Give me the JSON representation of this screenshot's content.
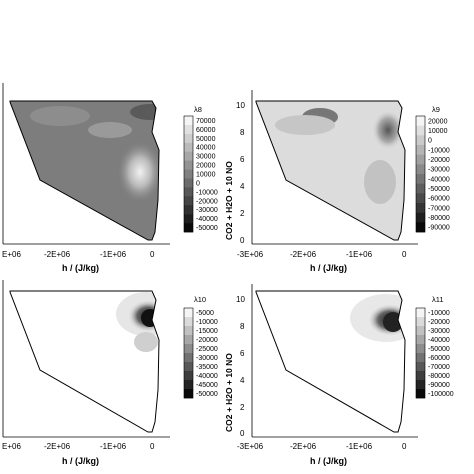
{
  "chart_data": [
    {
      "type": "heatmap",
      "xlabel": "h / (J/kg)",
      "ylabel": "",
      "xticks": [
        "E+06",
        "-2E+06",
        "-1E+06",
        "0"
      ],
      "yticks": [],
      "colorbar_label": "λ8",
      "colorbar_ticks": [
        "70000",
        "60000",
        "50000",
        "40000",
        "30000",
        "20000",
        "10000",
        "0",
        "-10000",
        "-20000",
        "-30000",
        "-40000",
        "-50000"
      ],
      "grayscale": true
    },
    {
      "type": "heatmap",
      "xlabel": "h / (J/kg)",
      "ylabel": "CO2 + H2O + 10 NO",
      "xticks": [
        "-3E+06",
        "-2E+06",
        "-1E+06",
        "0"
      ],
      "yticks": [
        "10",
        "8",
        "6",
        "4",
        "2",
        "0"
      ],
      "colorbar_label": "λ9",
      "colorbar_ticks": [
        "20000",
        "10000",
        "0",
        "-10000",
        "-20000",
        "-30000",
        "-40000",
        "-50000",
        "-60000",
        "-70000",
        "-80000",
        "-90000"
      ],
      "grayscale": true
    },
    {
      "type": "heatmap",
      "xlabel": "h / (J/kg)",
      "ylabel": "",
      "xticks": [
        "E+06",
        "-2E+06",
        "-1E+06",
        "0"
      ],
      "yticks": [],
      "colorbar_label": "λ10",
      "colorbar_ticks": [
        "-5000",
        "-10000",
        "-15000",
        "-20000",
        "-25000",
        "-30000",
        "-35000",
        "-40000",
        "-45000",
        "-50000"
      ],
      "grayscale": true
    },
    {
      "type": "heatmap",
      "xlabel": "h / (J/kg)",
      "ylabel": "CO2 + H2O + 10 NO",
      "xticks": [
        "-3E+06",
        "-2E+06",
        "-1E+06",
        "0"
      ],
      "yticks": [
        "10",
        "8",
        "6",
        "4",
        "2",
        "0"
      ],
      "colorbar_label": "λ11",
      "colorbar_ticks": [
        "-10000",
        "-20000",
        "-30000",
        "-40000",
        "-50000",
        "-60000",
        "-70000",
        "-80000",
        "-90000",
        "-100000"
      ],
      "grayscale": true
    }
  ]
}
